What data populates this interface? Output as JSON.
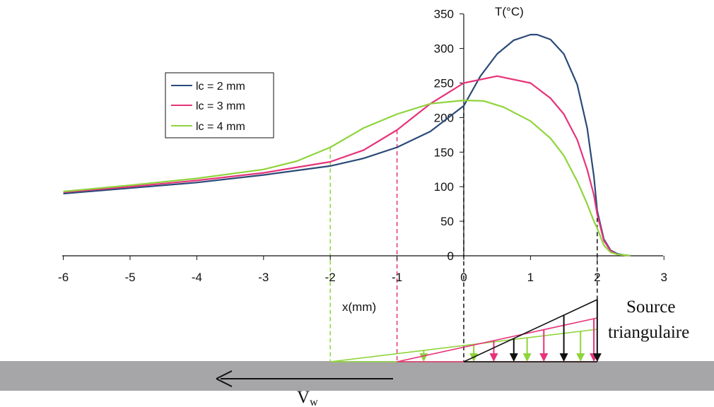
{
  "chart_data": {
    "type": "line",
    "xlabel": "x(mm)",
    "ylabel": "T(°C)",
    "xlim": [
      -6,
      3
    ],
    "ylim": [
      0,
      350
    ],
    "x_ticks": [
      -6,
      -5,
      -4,
      -3,
      -2,
      -1,
      0,
      1,
      2,
      3
    ],
    "y_ticks": [
      0,
      50,
      100,
      150,
      200,
      250,
      300,
      350
    ],
    "legend_position": "left",
    "grid": false,
    "series": [
      {
        "name": "lc = 2 mm",
        "color": "#2b4a78",
        "x": [
          -6,
          -5,
          -4,
          -3,
          -2,
          -1.5,
          -1,
          -0.5,
          0,
          0.25,
          0.5,
          0.75,
          1.0,
          1.1,
          1.3,
          1.5,
          1.7,
          1.85,
          1.95,
          2.0,
          2.1,
          2.2,
          2.3,
          2.4,
          2.5
        ],
        "y": [
          90,
          98,
          106,
          117,
          130,
          141,
          157,
          180,
          217,
          260,
          292,
          312,
          320,
          320,
          313,
          292,
          248,
          185,
          115,
          65,
          24,
          8,
          3,
          1,
          0
        ]
      },
      {
        "name": "lc = 3 mm",
        "color": "#e6337a",
        "x": [
          -6,
          -5,
          -4,
          -3,
          -2,
          -1.5,
          -1,
          -0.5,
          0,
          0.5,
          1.0,
          1.3,
          1.5,
          1.7,
          1.85,
          1.95,
          2.0,
          2.1,
          2.2,
          2.3,
          2.4,
          2.5
        ],
        "y": [
          92,
          100,
          109,
          120,
          136,
          153,
          182,
          220,
          250,
          260,
          250,
          228,
          205,
          168,
          125,
          88,
          60,
          22,
          7,
          2,
          1,
          0
        ]
      },
      {
        "name": "lc = 4 mm",
        "color": "#8fd43c",
        "x": [
          -6,
          -5,
          -4,
          -3,
          -2.5,
          -2,
          -1.5,
          -1,
          -0.5,
          0,
          0.3,
          0.6,
          1.0,
          1.3,
          1.5,
          1.7,
          1.85,
          1.95,
          2.0,
          2.1,
          2.2,
          2.3,
          2.5
        ],
        "y": [
          93,
          102,
          112,
          125,
          137,
          157,
          185,
          205,
          220,
          225,
          224,
          215,
          195,
          170,
          145,
          108,
          75,
          50,
          40,
          15,
          5,
          2,
          0
        ]
      }
    ],
    "guide_lines_x": [
      -2,
      -1,
      0,
      2
    ],
    "annotations": {
      "source_label_line1": "Source",
      "source_label_line2": "triangulaire",
      "velocity_label": "V",
      "velocity_subscript": "w"
    }
  },
  "colors": {
    "black": "#111111",
    "workpiece": "#a6a6a8"
  }
}
